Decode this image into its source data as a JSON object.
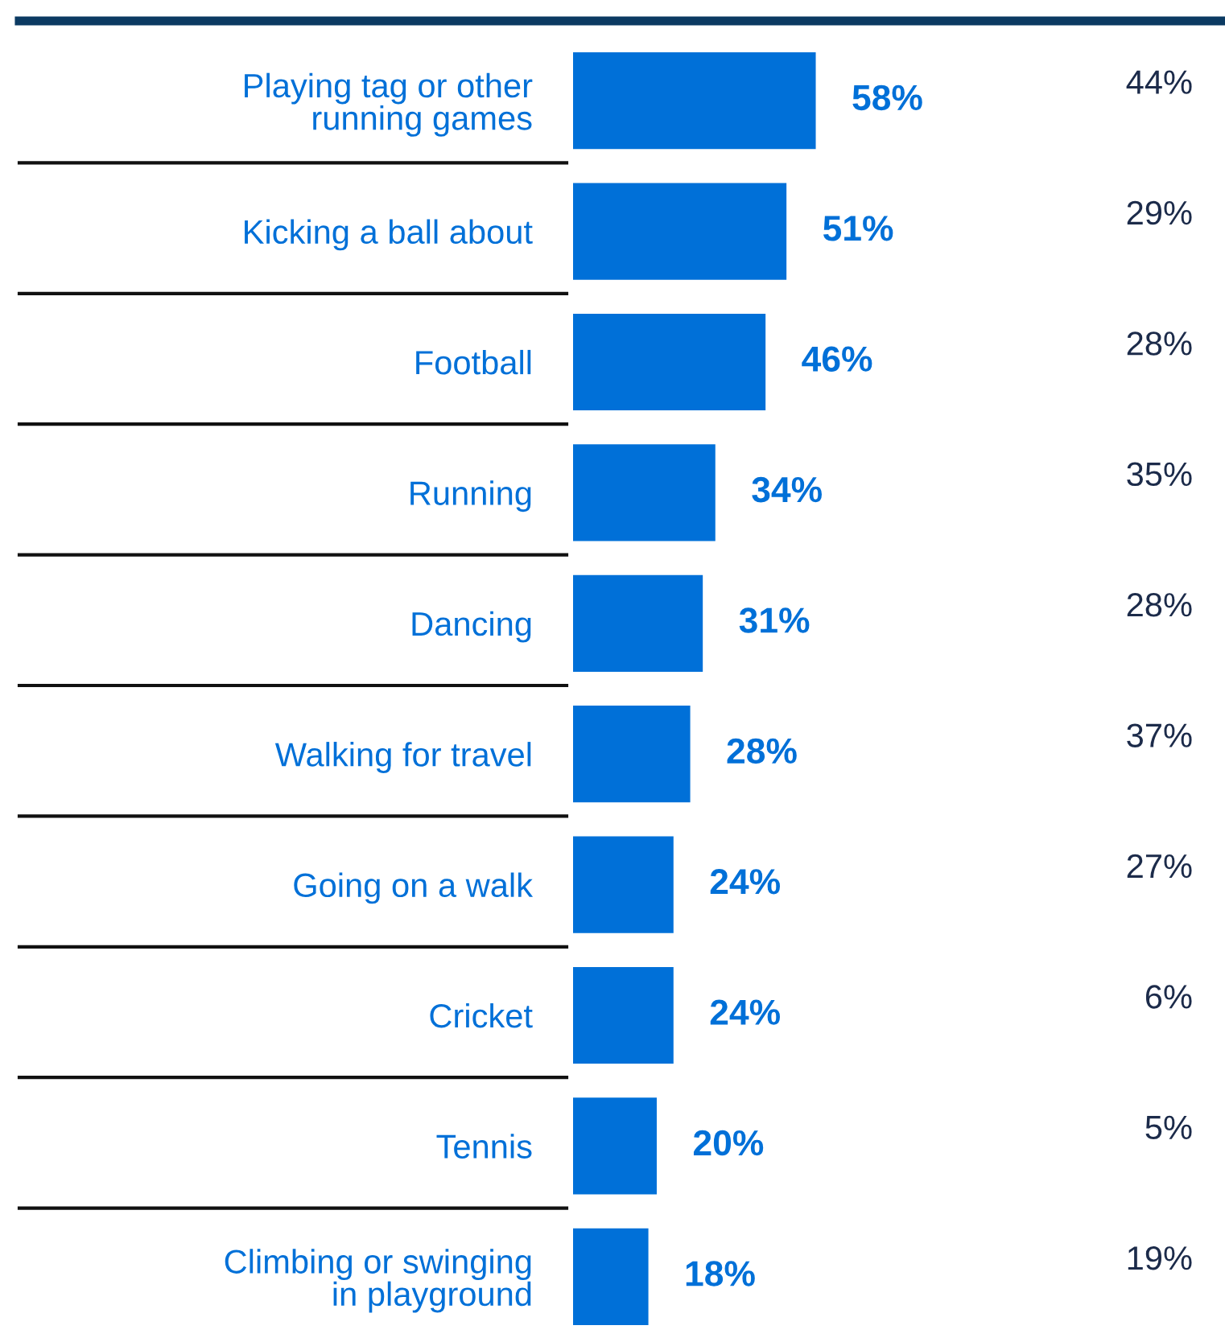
{
  "chart_data": [
    {
      "type": "bar",
      "orientation": "horizontal",
      "categories": [
        "Playing tag or other\nrunning games",
        "Kicking a ball about",
        "Football",
        "Running",
        "Dancing",
        "Walking for travel",
        "Going on a walk",
        "Cricket",
        "Tennis",
        "Climbing or swinging\nin playground"
      ],
      "values": [
        58,
        51,
        46,
        34,
        31,
        28,
        24,
        24,
        20,
        18
      ],
      "value_labels": [
        "58%",
        "51%",
        "46%",
        "34%",
        "31%",
        "28%",
        "24%",
        "24%",
        "20%",
        "18%"
      ],
      "color": "#0070d8",
      "tick_labels": "y",
      "grid": false
    },
    {
      "type": "other",
      "categories": [
        null,
        null,
        null,
        null,
        null,
        null,
        null,
        null,
        null,
        null
      ],
      "values": [
        44,
        29,
        28,
        35,
        28,
        37,
        27,
        6,
        5,
        19
      ],
      "value_labels": [
        "44%",
        "29%",
        "28%",
        "35%",
        "28%",
        "37%",
        "27%",
        "6%",
        "5%",
        "19%"
      ],
      "color": "#1c2b4a"
    }
  ]
}
